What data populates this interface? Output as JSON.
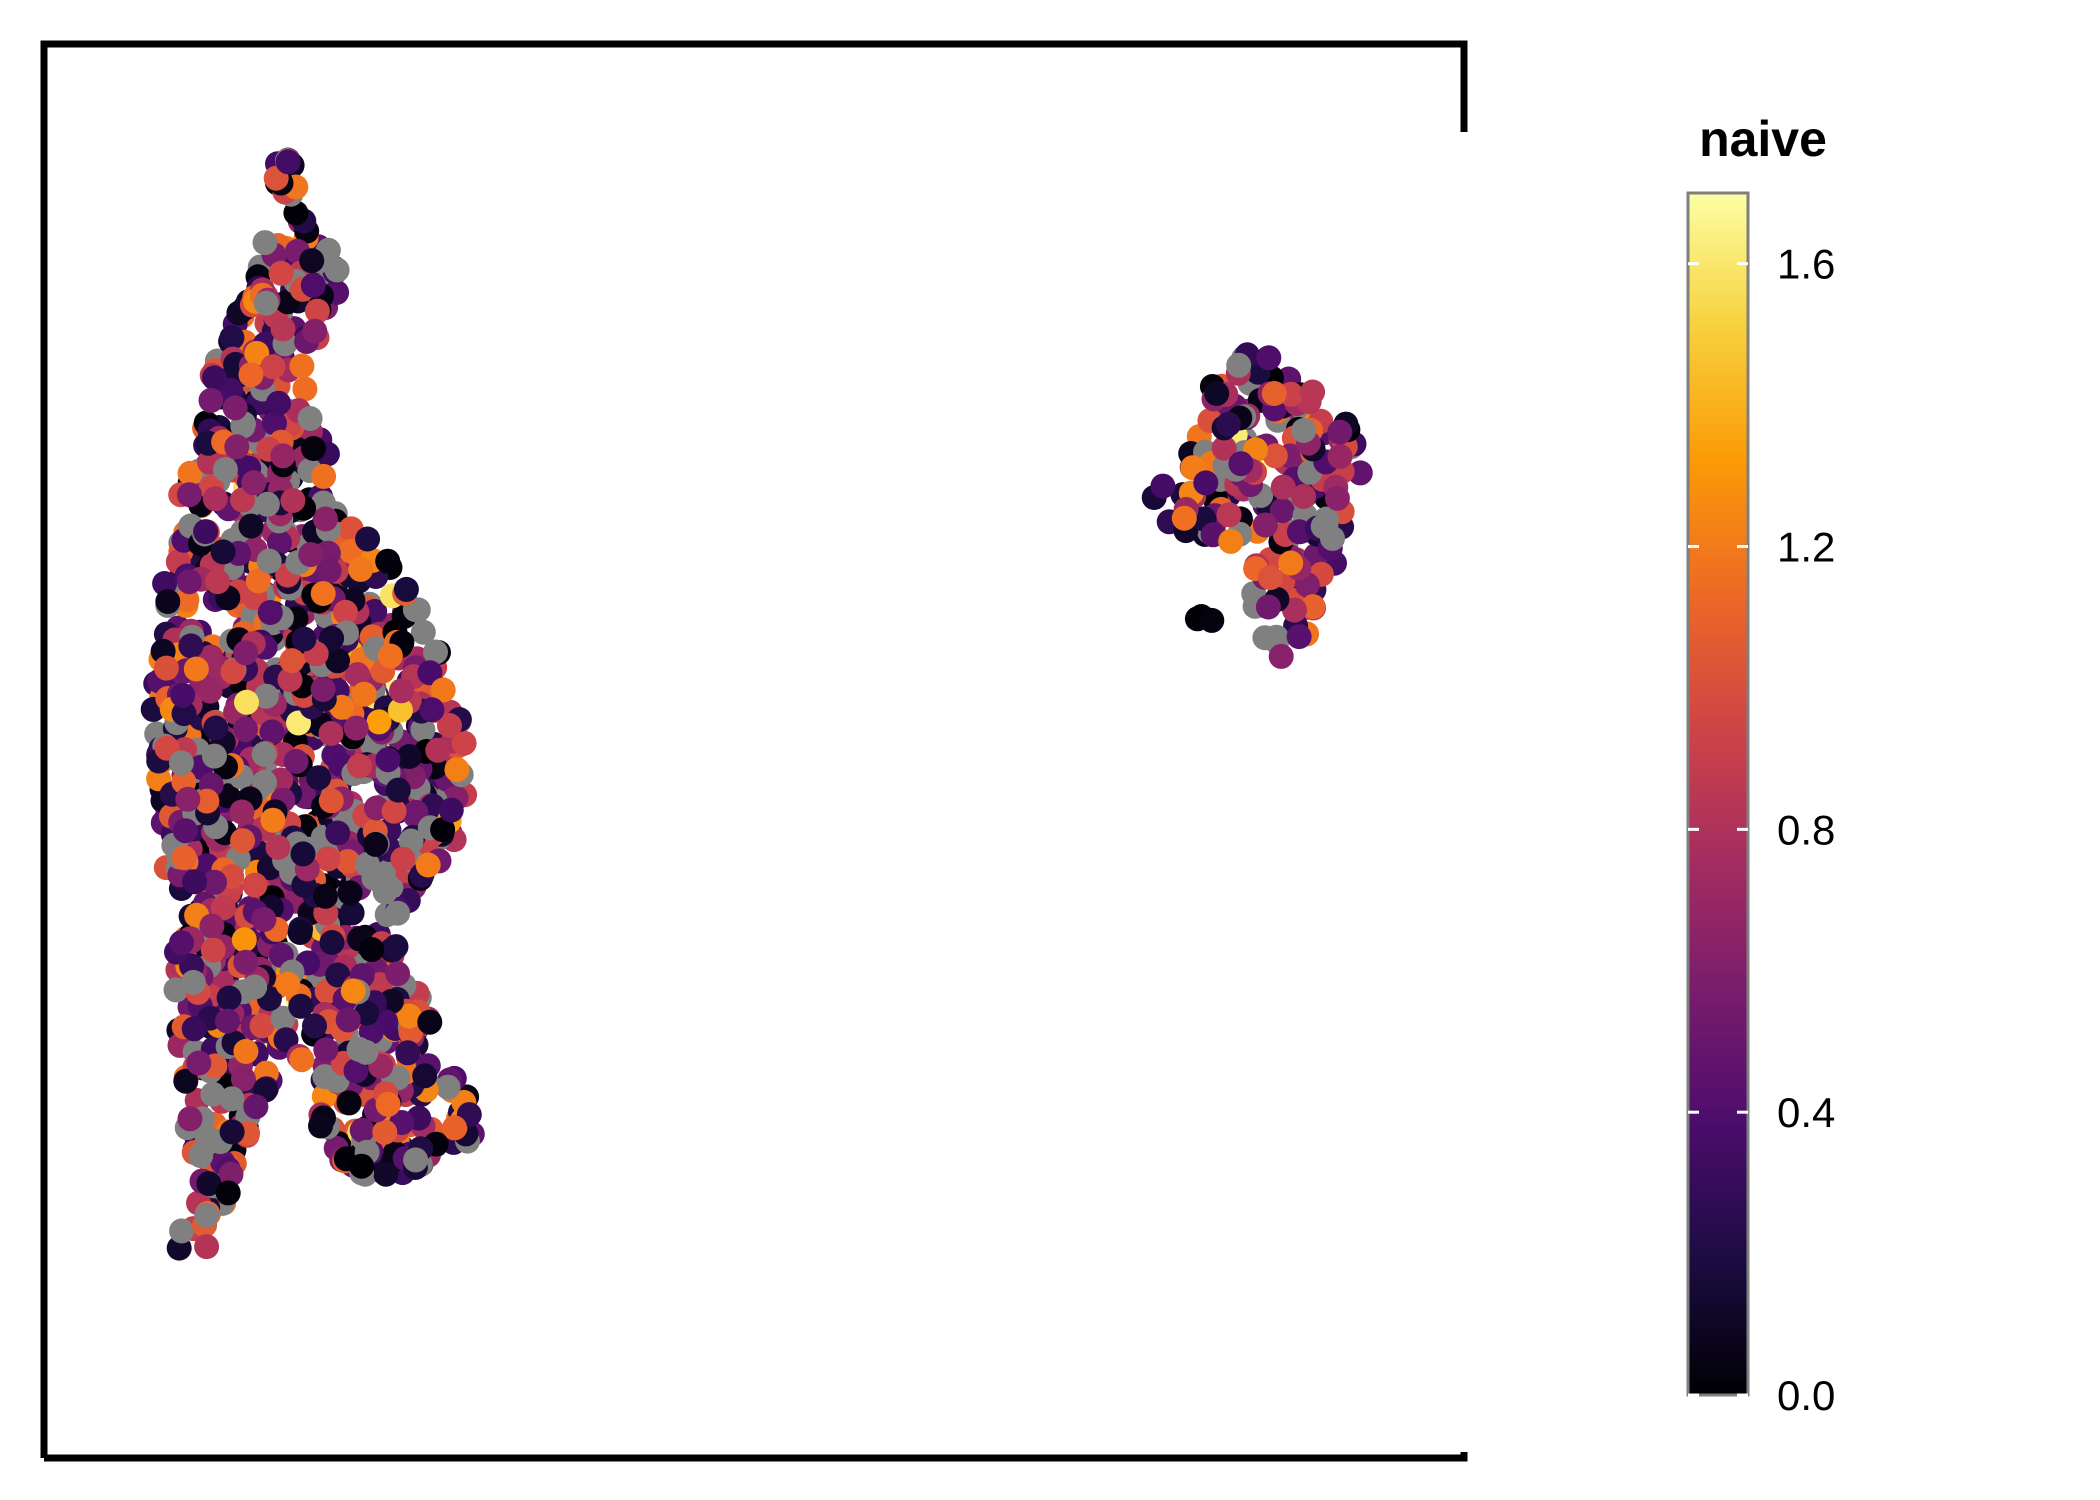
{
  "chart_data": {
    "type": "scatter",
    "title": "",
    "xlabel": "",
    "ylabel": "",
    "axes_visible": false,
    "grid": false,
    "x_range": [
      0,
      100
    ],
    "y_range": [
      0,
      100
    ],
    "point_alpha": 1.0,
    "na_color": "#808080",
    "colorbar": {
      "title": "naive",
      "position": "right",
      "colormap": "inferno",
      "range": [
        0.0,
        1.7
      ],
      "ticks": [
        0.0,
        0.4,
        0.8,
        1.2,
        1.6
      ],
      "tick_labels": [
        "0.0",
        "0.4",
        "0.8",
        "1.2",
        "1.6"
      ],
      "stops": [
        "#000004",
        "#1b0c41",
        "#4a0c6b",
        "#781c6d",
        "#a52c60",
        "#cf4446",
        "#ed6925",
        "#fb9b06",
        "#f7d13d",
        "#fcffa4"
      ]
    },
    "clusters": [
      {
        "shape": [
          [
            16.9,
            88.5
          ],
          [
            16.2,
            86.3
          ],
          [
            15.6,
            86.3
          ],
          [
            15.2,
            84.5
          ],
          [
            13.8,
            82.7
          ],
          [
            13.2,
            80.8
          ],
          [
            12.3,
            79.2
          ],
          [
            12.0,
            77.5
          ],
          [
            11.6,
            75.6
          ],
          [
            11.3,
            73.6
          ],
          [
            10.6,
            71.3
          ],
          [
            9.8,
            68.9
          ],
          [
            8.9,
            66.5
          ],
          [
            8.5,
            64.1
          ],
          [
            8.4,
            61.7
          ],
          [
            8.2,
            59.3
          ],
          [
            8.0,
            57.0
          ],
          [
            7.8,
            54.8
          ],
          [
            7.6,
            52.5
          ],
          [
            7.6,
            50.2
          ],
          [
            7.8,
            47.8
          ],
          [
            8.1,
            45.3
          ],
          [
            8.4,
            42.8
          ],
          [
            8.8,
            40.3
          ],
          [
            9.1,
            37.9
          ],
          [
            9.2,
            35.4
          ],
          [
            9.1,
            33.1
          ],
          [
            9.3,
            30.6
          ],
          [
            9.5,
            28.4
          ],
          [
            9.5,
            26.1
          ],
          [
            9.6,
            23.9
          ],
          [
            10.1,
            22.0
          ],
          [
            10.6,
            20.3
          ],
          [
            10.8,
            18.6
          ],
          [
            9.6,
            16.3
          ],
          [
            9.2,
            14.8
          ],
          [
            10.1,
            14.0
          ],
          [
            11.6,
            13.1
          ],
          [
            12.2,
            15.2
          ],
          [
            12.7,
            17.3
          ],
          [
            13.3,
            19.6
          ],
          [
            14.0,
            21.8
          ],
          [
            14.8,
            23.6
          ],
          [
            15.6,
            25.1
          ],
          [
            16.3,
            27.1
          ],
          [
            17.0,
            29.2
          ],
          [
            18.0,
            26.8
          ],
          [
            18.7,
            24.8
          ],
          [
            19.8,
            22.5
          ],
          [
            21.0,
            20.9
          ],
          [
            22.4,
            19.9
          ],
          [
            23.9,
            19.4
          ],
          [
            25.3,
            19.6
          ],
          [
            26.6,
            20.5
          ],
          [
            27.8,
            21.5
          ],
          [
            28.9,
            22.1
          ],
          [
            29.8,
            21.9
          ],
          [
            30.5,
            23.4
          ],
          [
            30.0,
            25.3
          ],
          [
            29.0,
            26.8
          ],
          [
            27.5,
            27.9
          ],
          [
            26.6,
            29.1
          ],
          [
            27.1,
            30.3
          ],
          [
            27.3,
            31.6
          ],
          [
            26.5,
            33.1
          ],
          [
            25.4,
            34.9
          ],
          [
            24.6,
            36.7
          ],
          [
            25.2,
            38.1
          ],
          [
            25.8,
            39.7
          ],
          [
            27.0,
            41.2
          ],
          [
            28.4,
            42.9
          ],
          [
            29.5,
            44.8
          ],
          [
            29.9,
            46.9
          ],
          [
            29.9,
            49.0
          ],
          [
            29.6,
            51.0
          ],
          [
            29.2,
            53.1
          ],
          [
            28.5,
            55.4
          ],
          [
            27.6,
            57.7
          ],
          [
            26.4,
            60.1
          ],
          [
            25.3,
            62.4
          ],
          [
            24.1,
            64.3
          ],
          [
            22.4,
            65.6
          ],
          [
            20.6,
            66.2
          ],
          [
            20.8,
            67.7
          ],
          [
            20.7,
            69.4
          ],
          [
            20.0,
            71.0
          ],
          [
            19.0,
            72.9
          ],
          [
            18.9,
            74.8
          ],
          [
            19.4,
            76.7
          ],
          [
            19.1,
            78.4
          ],
          [
            19.8,
            80.1
          ],
          [
            20.6,
            81.8
          ],
          [
            21.1,
            83.4
          ],
          [
            20.7,
            84.8
          ],
          [
            19.9,
            86.3
          ],
          [
            18.8,
            87.3
          ],
          [
            17.6,
            88.3
          ],
          [
            16.9,
            88.5
          ]
        ],
        "count": 1500
      },
      {
        "shape": [
          [
            16.2,
            91.6
          ],
          [
            16.8,
            91.8
          ],
          [
            17.4,
            92.1
          ],
          [
            17.8,
            91.6
          ],
          [
            18.3,
            91.1
          ],
          [
            17.6,
            89.5
          ],
          [
            16.8,
            88.7
          ],
          [
            16.2,
            89.4
          ],
          [
            16.2,
            91.6
          ]
        ],
        "count": 14
      },
      {
        "shape": [
          [
            81.6,
            74.3
          ],
          [
            82.5,
            76.3
          ],
          [
            83.7,
            77.8
          ],
          [
            85.6,
            78.4
          ],
          [
            87.4,
            77.3
          ],
          [
            88.2,
            76.0
          ],
          [
            90.0,
            75.2
          ],
          [
            91.8,
            73.4
          ],
          [
            92.7,
            71.5
          ],
          [
            92.9,
            69.6
          ],
          [
            92.1,
            67.1
          ],
          [
            91.3,
            64.5
          ],
          [
            90.4,
            61.8
          ],
          [
            89.4,
            59.1
          ],
          [
            88.3,
            56.8
          ],
          [
            86.7,
            56.6
          ],
          [
            85.6,
            58.4
          ],
          [
            84.7,
            61.2
          ],
          [
            84.4,
            63.7
          ],
          [
            83.2,
            64.9
          ],
          [
            81.1,
            65.0
          ],
          [
            79.2,
            65.8
          ],
          [
            78.0,
            67.1
          ],
          [
            78.2,
            68.6
          ],
          [
            79.4,
            69.8
          ],
          [
            80.7,
            71.2
          ],
          [
            81.0,
            72.7
          ],
          [
            80.8,
            73.8
          ],
          [
            81.6,
            74.3
          ]
        ],
        "count": 220
      },
      {
        "shape": [
          [
            81.1,
            59.6
          ],
          [
            82.0,
            60.2
          ],
          [
            82.3,
            59.0
          ],
          [
            81.5,
            58.6
          ],
          [
            81.1,
            59.6
          ]
        ],
        "count": 3
      }
    ]
  }
}
